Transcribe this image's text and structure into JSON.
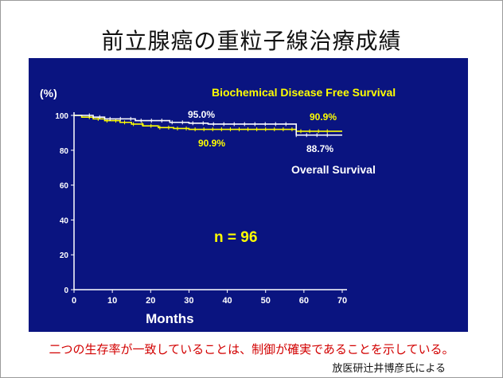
{
  "title": "前立腺癌の重粒子線治療成績",
  "caption": "二つの生存率が一致していることは、制御が確実であることを示している。",
  "credit": "放医研辻井博彦氏による",
  "colors": {
    "panel": "#0a1480",
    "yellow": "#ffff00",
    "white": "#ffffff",
    "caption": "#d20000"
  },
  "chart_data": {
    "type": "line",
    "y_unit_label": "(%)",
    "xlabel": "Months",
    "xlim": [
      0,
      70
    ],
    "ylim": [
      0,
      100
    ],
    "xticks": [
      0,
      10,
      20,
      30,
      40,
      50,
      60,
      70
    ],
    "yticks": [
      0,
      20,
      40,
      60,
      80,
      100
    ],
    "series": [
      {
        "name": "Biochemical Disease Free Survival",
        "color": "#ffff00",
        "x": [
          0,
          2,
          5,
          8,
          12,
          15,
          18,
          22,
          26,
          30,
          58,
          70
        ],
        "y": [
          100,
          99,
          98,
          97,
          96,
          95,
          94,
          93,
          92.5,
          92,
          90.9,
          90.9
        ]
      },
      {
        "name": "Overall Survival",
        "color": "#ffffff",
        "x": [
          0,
          3,
          5,
          8,
          12,
          16,
          20,
          25,
          30,
          35,
          40,
          50,
          57,
          58,
          70
        ],
        "y": [
          100,
          100,
          99,
          98,
          98,
          97,
          97,
          96,
          95.5,
          95,
          95,
          95,
          95,
          88.7,
          88.7
        ]
      }
    ],
    "annotations": [
      {
        "text": "95.0%",
        "color": "#ffffff"
      },
      {
        "text": "90.9%",
        "color": "#ffff00",
        "position": "right"
      },
      {
        "text": "90.9%",
        "color": "#ffff00",
        "position": "mid"
      },
      {
        "text": "88.7%",
        "color": "#ffffff"
      },
      {
        "text": "n = 96",
        "color": "#ffff00"
      }
    ]
  }
}
